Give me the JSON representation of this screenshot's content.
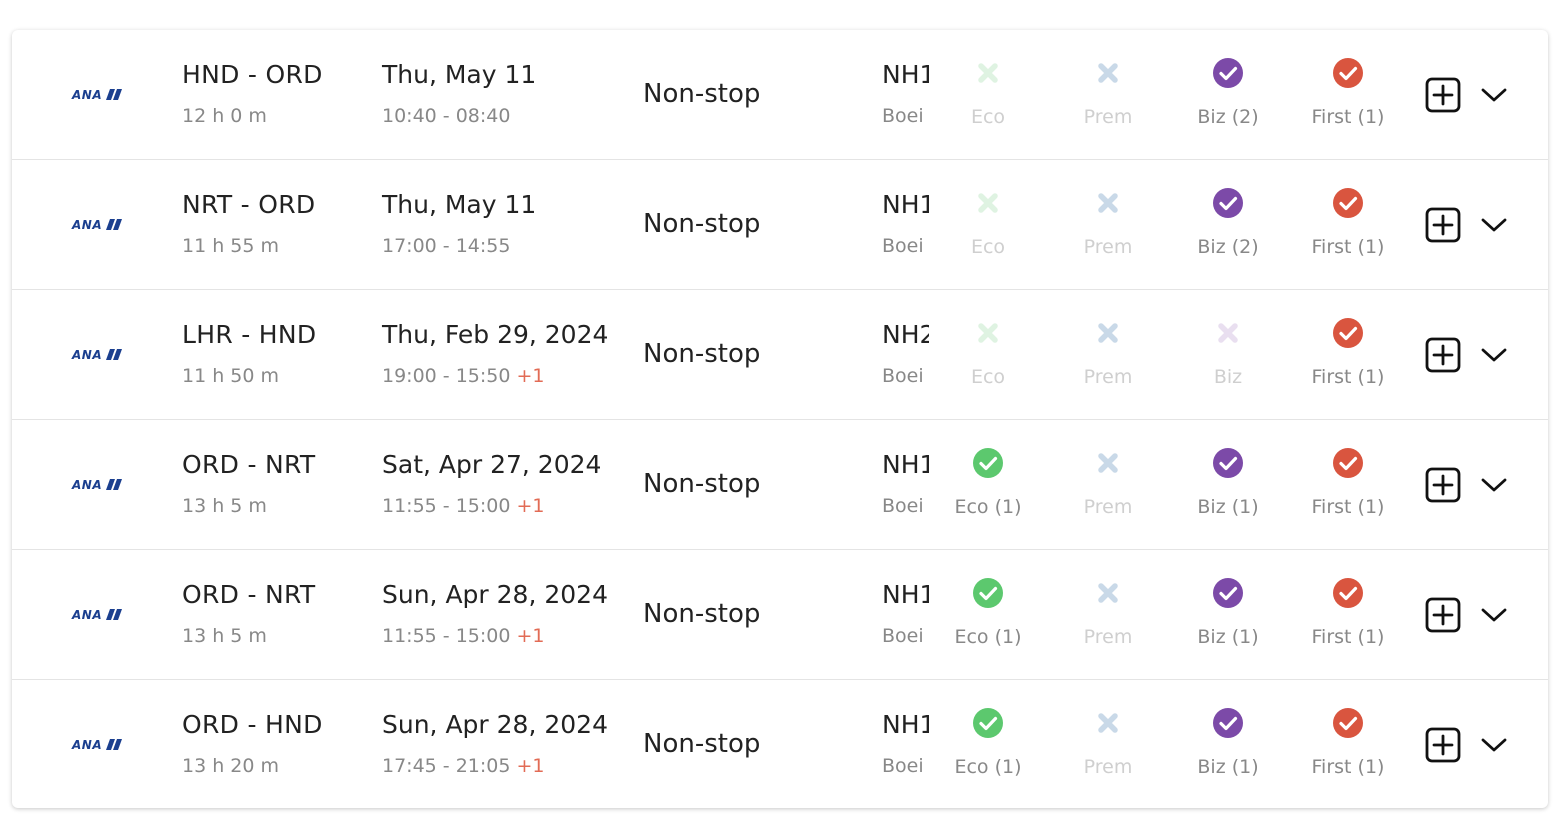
{
  "colors": {
    "eco": "#5cc86e",
    "prem": "#c9d9e8",
    "biz": "#7c4aa8",
    "first": "#d9553f",
    "eco_na": "#dff3e2",
    "biz_na": "#e9dff0",
    "plus_day": "#e26b55"
  },
  "airline": {
    "logo_text": "ANA"
  },
  "flights": [
    {
      "route": "HND - ORD",
      "duration": "12 h 0 m",
      "date": "Thu, May 11",
      "times": "10:40 - 08:40",
      "plus_day": "",
      "stops": "Non-stop",
      "flight": "NH1",
      "aircraft": "Boei",
      "eco": {
        "available": false,
        "label": "Eco"
      },
      "prem": {
        "available": false,
        "label": "Prem"
      },
      "biz": {
        "available": true,
        "label": "Biz (2)"
      },
      "first": {
        "available": true,
        "label": "First (1)"
      }
    },
    {
      "route": "NRT - ORD",
      "duration": "11 h 55 m",
      "date": "Thu, May 11",
      "times": "17:00 - 14:55",
      "plus_day": "",
      "stops": "Non-stop",
      "flight": "NH1",
      "aircraft": "Boei",
      "eco": {
        "available": false,
        "label": "Eco"
      },
      "prem": {
        "available": false,
        "label": "Prem"
      },
      "biz": {
        "available": true,
        "label": "Biz (2)"
      },
      "first": {
        "available": true,
        "label": "First (1)"
      }
    },
    {
      "route": "LHR - HND",
      "duration": "11 h 50 m",
      "date": "Thu, Feb 29, 2024",
      "times": "19:00 - 15:50 ",
      "plus_day": "+1",
      "stops": "Non-stop",
      "flight": "NH2",
      "aircraft": "Boei",
      "eco": {
        "available": false,
        "label": "Eco"
      },
      "prem": {
        "available": false,
        "label": "Prem"
      },
      "biz": {
        "available": false,
        "label": "Biz"
      },
      "first": {
        "available": true,
        "label": "First (1)"
      }
    },
    {
      "route": "ORD - NRT",
      "duration": "13 h 5 m",
      "date": "Sat, Apr 27, 2024",
      "times": "11:55 - 15:00 ",
      "plus_day": "+1",
      "stops": "Non-stop",
      "flight": "NH1",
      "aircraft": "Boei",
      "eco": {
        "available": true,
        "label": "Eco (1)"
      },
      "prem": {
        "available": false,
        "label": "Prem"
      },
      "biz": {
        "available": true,
        "label": "Biz (1)"
      },
      "first": {
        "available": true,
        "label": "First (1)"
      }
    },
    {
      "route": "ORD - NRT",
      "duration": "13 h 5 m",
      "date": "Sun, Apr 28, 2024",
      "times": "11:55 - 15:00 ",
      "plus_day": "+1",
      "stops": "Non-stop",
      "flight": "NH1",
      "aircraft": "Boei",
      "eco": {
        "available": true,
        "label": "Eco (1)"
      },
      "prem": {
        "available": false,
        "label": "Prem"
      },
      "biz": {
        "available": true,
        "label": "Biz (1)"
      },
      "first": {
        "available": true,
        "label": "First (1)"
      }
    },
    {
      "route": "ORD - HND",
      "duration": "13 h 20 m",
      "date": "Sun, Apr 28, 2024",
      "times": "17:45 - 21:05 ",
      "plus_day": "+1",
      "stops": "Non-stop",
      "flight": "NH1",
      "aircraft": "Boei",
      "eco": {
        "available": true,
        "label": "Eco (1)"
      },
      "prem": {
        "available": false,
        "label": "Prem"
      },
      "biz": {
        "available": true,
        "label": "Biz (1)"
      },
      "first": {
        "available": true,
        "label": "First (1)"
      }
    }
  ]
}
